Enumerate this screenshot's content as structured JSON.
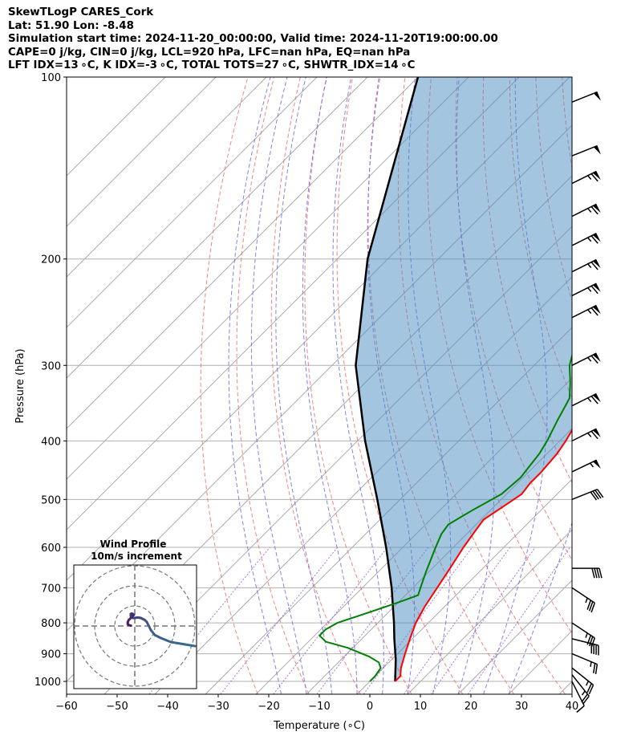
{
  "header": {
    "line1": "SkewTLogP CARES_Cork",
    "line2": "Lat: 51.90   Lon: -8.48",
    "line3": "Simulation start time: 2024-11-20_00:00:00, Valid time: 2024-11-20T19:00:00.00",
    "line4": "CAPE=0 j/kg, CIN=0 j/kg, LCL=920 hPa, LFC=nan hPa, EQ=nan hPa",
    "line5": "LFT IDX=13$^\\circ$C, K IDX=-3$^\\circ$C, TOTAL TOTS=27$^\\circ$C, SHWTR_IDX=14$^\\circ$C"
  },
  "header_display": {
    "line5": "LFT IDX=13 ∘C, K IDX=-3 ∘C, TOTAL TOTS=27 ∘C, SHWTR_IDX=14 ∘C"
  },
  "chart_data": {
    "type": "skewt",
    "xlabel": "Temperature ($^\\circ$C)",
    "xlabel_display": "Temperature (∘C)",
    "ylabel": "Pressure (hPa)",
    "xlim": [
      -60,
      40
    ],
    "ylim": [
      1050,
      100
    ],
    "log_y": true,
    "grid": true,
    "x_ticks": [
      -60,
      -50,
      -40,
      -30,
      -20,
      -10,
      0,
      10,
      20,
      30,
      40
    ],
    "x_tick_labels": [
      "−60",
      "−50",
      "−40",
      "−30",
      "−20",
      "−10",
      "0",
      "10",
      "20",
      "30",
      "40"
    ],
    "y_ticks": [
      1000,
      900,
      800,
      700,
      600,
      500,
      400,
      300,
      200,
      100
    ],
    "y_tick_labels": [
      "1000",
      "900",
      "800",
      "700",
      "600",
      "500",
      "400",
      "300",
      "200",
      "100"
    ],
    "temperature": {
      "color": "#ff0000",
      "points": [
        [
          1000,
          5
        ],
        [
          980,
          5
        ],
        [
          950,
          3.5
        ],
        [
          900,
          1.5
        ],
        [
          850,
          -0.5
        ],
        [
          800,
          -2.5
        ],
        [
          750,
          -4
        ],
        [
          700,
          -5.2
        ],
        [
          650,
          -6.5
        ],
        [
          600,
          -8
        ],
        [
          560,
          -9
        ],
        [
          540,
          -9.5
        ],
        [
          510,
          -8
        ],
        [
          490,
          -7
        ],
        [
          470,
          -7.5
        ],
        [
          450,
          -7.5
        ],
        [
          420,
          -8
        ],
        [
          400,
          -8.8
        ],
        [
          370,
          -10.5
        ],
        [
          340,
          -12.5
        ],
        [
          310,
          -14.5
        ],
        [
          290,
          -17.5
        ],
        [
          260,
          -22
        ],
        [
          240,
          -23.5
        ],
        [
          235,
          -23.5
        ],
        [
          220,
          -22
        ],
        [
          200,
          -22.5
        ],
        [
          180,
          -24
        ],
        [
          160,
          -26
        ],
        [
          140,
          -29
        ],
        [
          120,
          -34
        ],
        [
          110,
          -38
        ],
        [
          100,
          -40
        ]
      ]
    },
    "dewpoint": {
      "color": "#008000",
      "points": [
        [
          1000,
          0
        ],
        [
          980,
          0
        ],
        [
          950,
          -0.5
        ],
        [
          930,
          -2
        ],
        [
          910,
          -5
        ],
        [
          880,
          -11
        ],
        [
          860,
          -16.5
        ],
        [
          840,
          -19
        ],
        [
          820,
          -19
        ],
        [
          800,
          -18
        ],
        [
          770,
          -14
        ],
        [
          740,
          -10
        ],
        [
          720,
          -7.5
        ],
        [
          700,
          -8.5
        ],
        [
          660,
          -10.5
        ],
        [
          600,
          -13.5
        ],
        [
          570,
          -15
        ],
        [
          550,
          -15.5
        ],
        [
          520,
          -13.5
        ],
        [
          490,
          -11
        ],
        [
          460,
          -10.5
        ],
        [
          420,
          -11.5
        ],
        [
          400,
          -12.5
        ],
        [
          370,
          -14.5
        ],
        [
          340,
          -16.5
        ],
        [
          320,
          -19.5
        ],
        [
          300,
          -23
        ],
        [
          270,
          -27
        ],
        [
          250,
          -29
        ],
        [
          235,
          -31
        ],
        [
          220,
          -32
        ],
        [
          210,
          -33
        ],
        [
          200,
          -34
        ],
        [
          180,
          -36
        ],
        [
          165,
          -38.5
        ],
        [
          150,
          -41.5
        ],
        [
          140,
          -44.5
        ],
        [
          120,
          -47.5
        ],
        [
          110,
          -49
        ],
        [
          100,
          -50
        ]
      ]
    },
    "parcel": {
      "color": "#000000",
      "points": [
        [
          1000,
          5
        ],
        [
          920,
          0.8
        ],
        [
          850,
          -3.6
        ],
        [
          800,
          -6.8
        ],
        [
          700,
          -14.2
        ],
        [
          600,
          -23.3
        ],
        [
          500,
          -34.5
        ],
        [
          400,
          -48.5
        ],
        [
          300,
          -65.3
        ],
        [
          200,
          -84
        ],
        [
          100,
          -110
        ]
      ]
    },
    "cin_cape_shading": {
      "type": "CIN",
      "color": "#4a8cbf",
      "between": [
        "parcel",
        "temperature"
      ]
    },
    "dry_adiabats_theta_K": [
      250,
      260,
      270,
      280,
      290,
      300,
      310,
      320,
      330,
      340,
      350,
      360,
      370
    ],
    "moist_adiabats_start_C": [
      -15,
      -10,
      -5,
      0,
      5,
      10,
      15,
      20,
      25,
      30
    ],
    "mixing_ratio_g_kg": [
      0.1,
      0.4,
      1,
      2,
      4,
      7,
      10,
      16
    ],
    "isotherm_colors": {
      "isotherm": "#aaaaaa",
      "dry_adiabat": "#f26d6d",
      "moist_adiabat": "#6c6ce6",
      "mixing_ratio": "#9955cc"
    },
    "wind_barbs": [
      {
        "p": 1000,
        "u": -2,
        "v": 4
      },
      {
        "p": 975,
        "u": -8,
        "v": 10
      },
      {
        "p": 950,
        "u": -10,
        "v": 8
      },
      {
        "p": 900,
        "u": -12,
        "v": 5
      },
      {
        "p": 850,
        "u": -20,
        "v": 5
      },
      {
        "p": 800,
        "u": -15,
        "v": 10
      },
      {
        "p": 700,
        "u": -15,
        "v": 10
      },
      {
        "p": 650,
        "u": -20,
        "v": 0
      },
      {
        "p": 500,
        "u": -20,
        "v": -8
      },
      {
        "p": 450,
        "u": -25,
        "v": -12
      },
      {
        "p": 400,
        "u": -30,
        "v": -15
      },
      {
        "p": 350,
        "u": -30,
        "v": -15
      },
      {
        "p": 300,
        "u": -30,
        "v": -15
      },
      {
        "p": 250,
        "u": -30,
        "v": -15
      },
      {
        "p": 230,
        "u": -30,
        "v": -15
      },
      {
        "p": 210,
        "u": -30,
        "v": -15
      },
      {
        "p": 190,
        "u": -30,
        "v": -15
      },
      {
        "p": 170,
        "u": -30,
        "v": -15
      },
      {
        "p": 150,
        "u": -30,
        "v": -15
      },
      {
        "p": 135,
        "u": -25,
        "v": -10
      },
      {
        "p": 110,
        "u": -25,
        "v": -10
      }
    ],
    "hodograph": {
      "title": "Wind Profile",
      "subtitle": "10m/s increment",
      "ring_step_ms": 10,
      "rings": 3,
      "line_color_low": "#3b6a8f",
      "line_color_high": "#4b1d63",
      "points": [
        [
          30,
          -10
        ],
        [
          24,
          -9
        ],
        [
          18,
          -8
        ],
        [
          13,
          -6
        ],
        [
          10,
          -4.5
        ],
        [
          8,
          -2
        ],
        [
          7,
          0
        ],
        [
          6,
          2
        ],
        [
          5,
          3
        ],
        [
          4,
          3.5
        ],
        [
          3,
          4
        ],
        [
          2,
          4.2
        ],
        [
          1,
          4.2
        ],
        [
          0,
          4
        ],
        [
          -1,
          4
        ],
        [
          -1.5,
          4.5
        ],
        [
          -2,
          5
        ],
        [
          -2,
          6
        ],
        [
          -1.5,
          6.2
        ],
        [
          -1,
          6
        ],
        [
          -0.5,
          5.5
        ],
        [
          -1,
          5
        ],
        [
          -2,
          4
        ],
        [
          -3,
          3
        ],
        [
          -3.5,
          2
        ],
        [
          -3.5,
          1
        ],
        [
          -3,
          0.5
        ],
        [
          -2,
          0.2
        ]
      ]
    }
  }
}
